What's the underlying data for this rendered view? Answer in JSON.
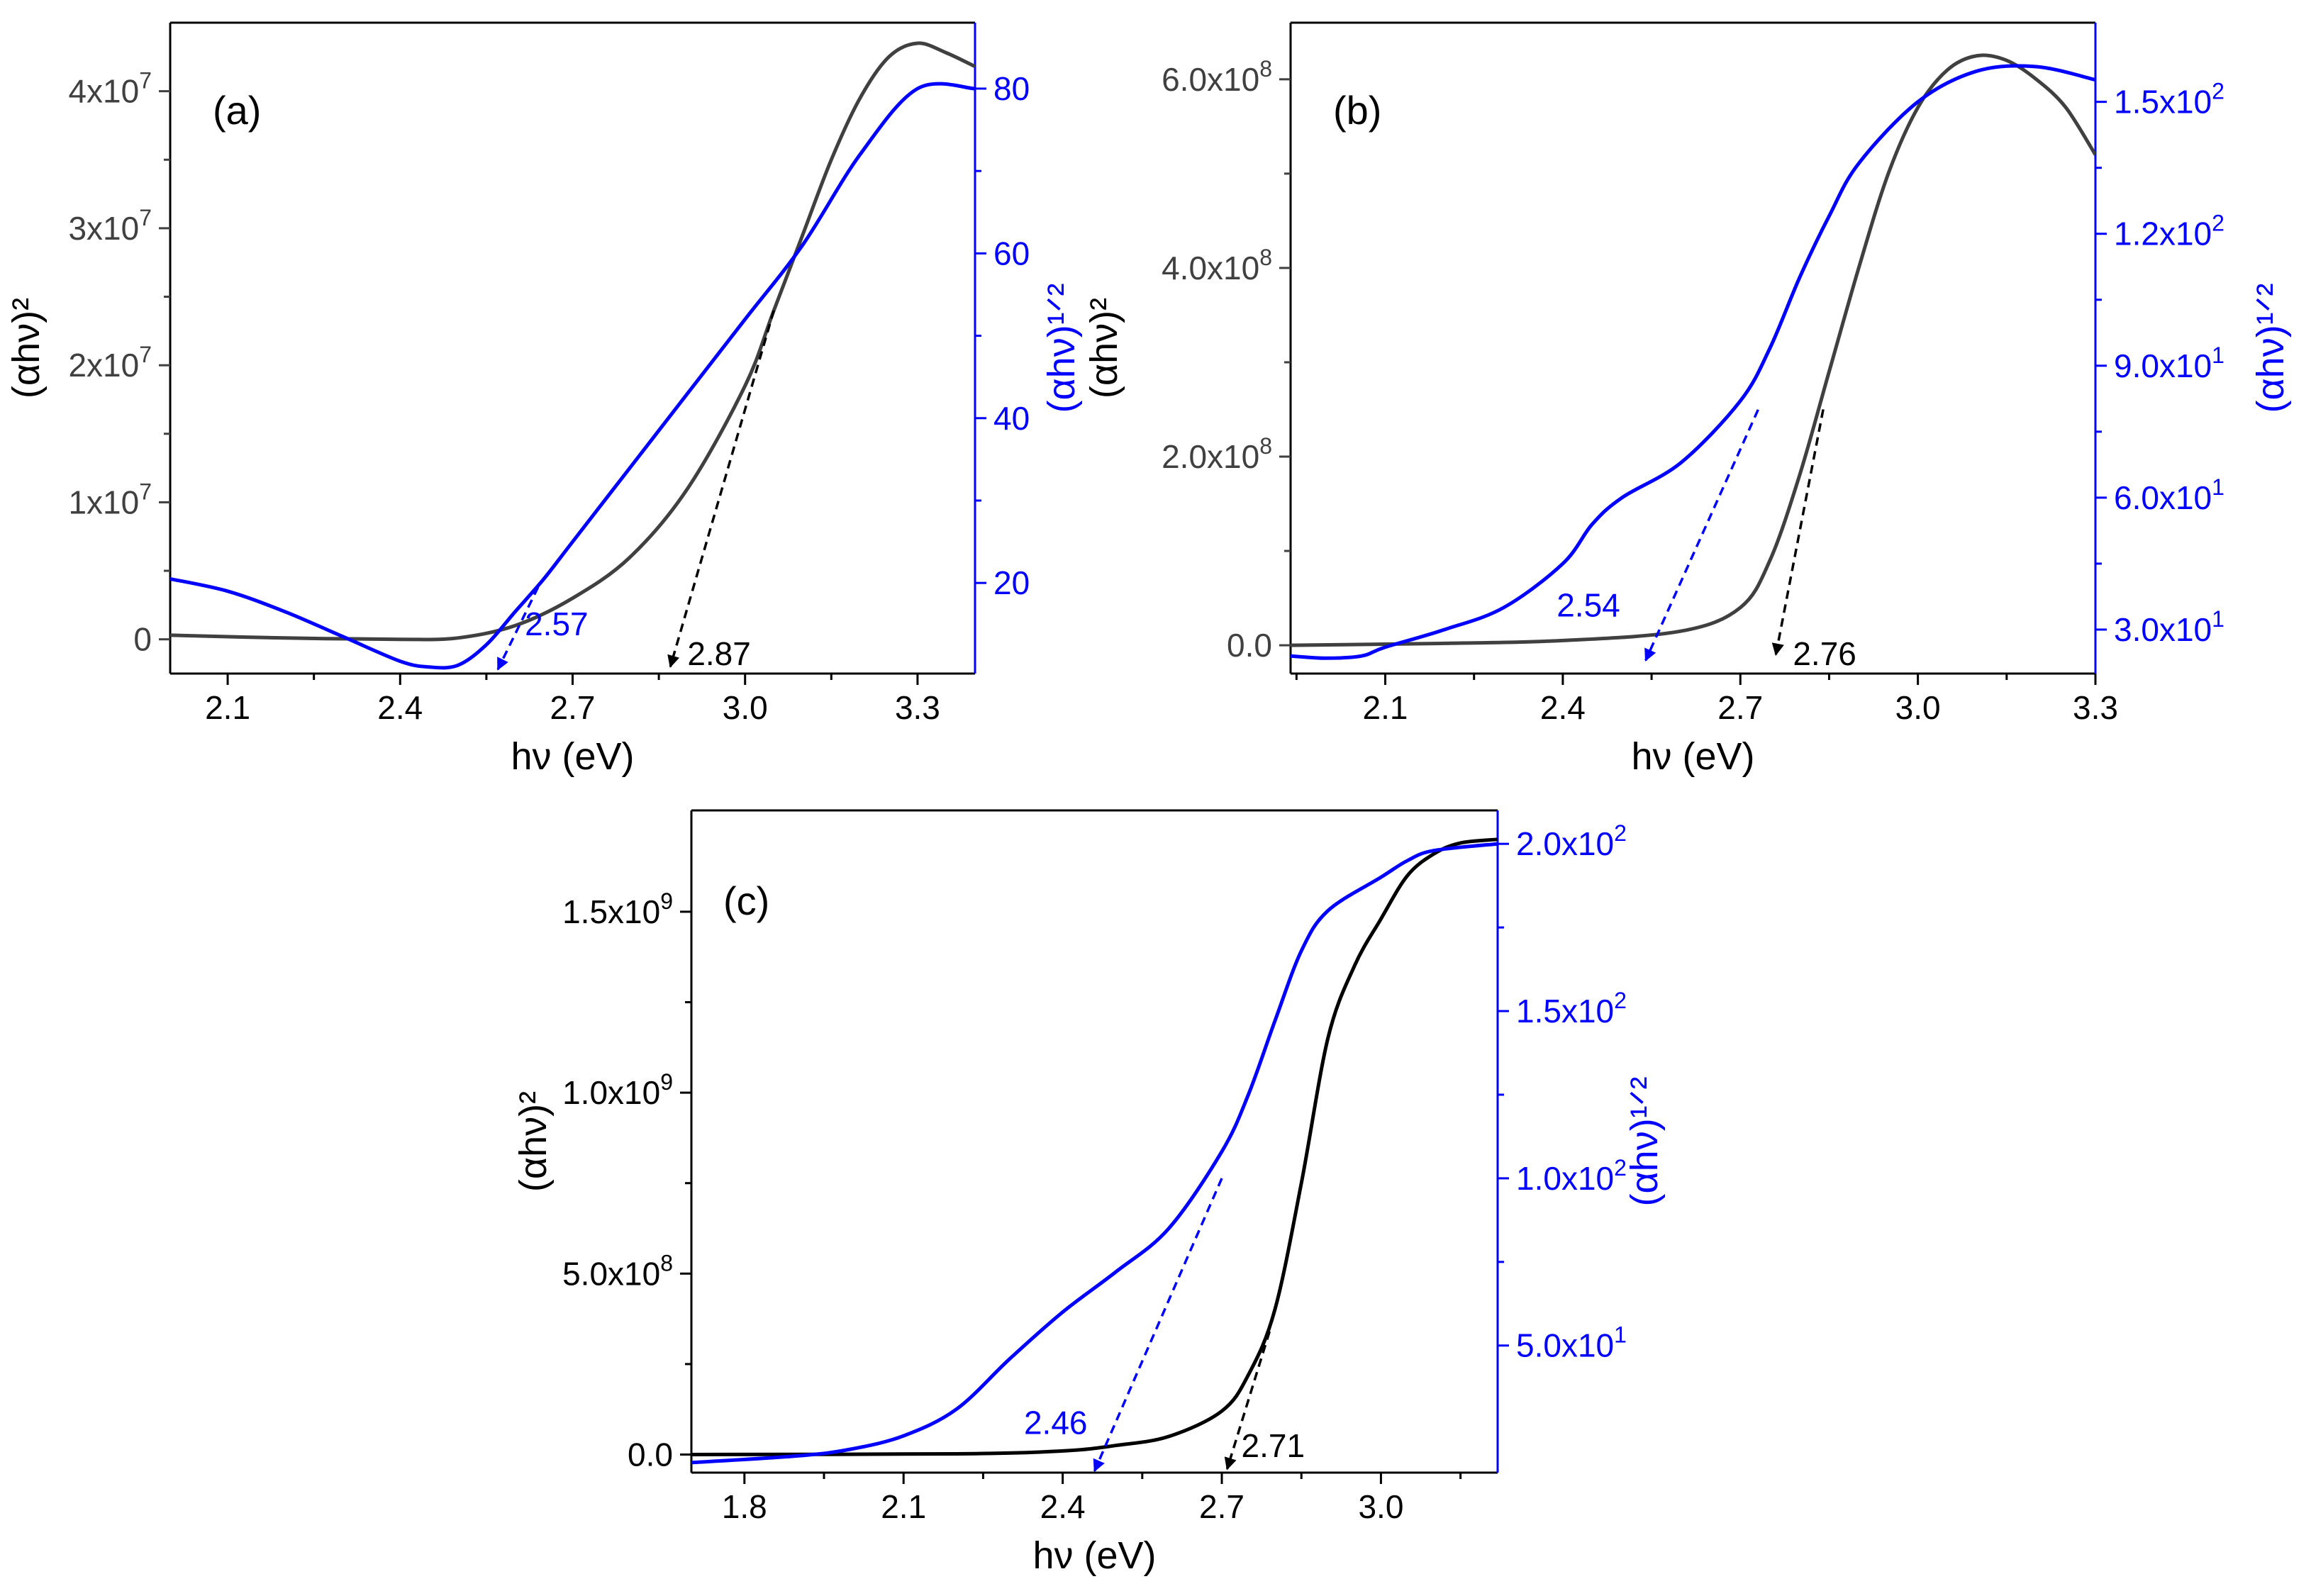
{
  "colors": {
    "left": "#404040",
    "left_c": "#000000",
    "right": "#0000ff",
    "frame": "#000000"
  },
  "chart_data": [
    {
      "panel": "(a)",
      "type": "line",
      "xlabel": "hν (eV)",
      "ylabel_left": "(αhν)²",
      "ylabel_right": "(αhν)¹ᐟ²",
      "xlim": [
        2.0,
        3.4
      ],
      "ylim_left": [
        -2500000.0,
        45000000.0
      ],
      "ylim_right": [
        9.0,
        88.0
      ],
      "xticks": [
        {
          "v": 2.1,
          "label": "2.1"
        },
        {
          "v": 2.4,
          "label": "2.4"
        },
        {
          "v": 2.7,
          "label": "2.7"
        },
        {
          "v": 3.0,
          "label": "3.0"
        },
        {
          "v": 3.3,
          "label": "3.3"
        }
      ],
      "yticks_left": [
        {
          "v": 0,
          "label": "0",
          "exp": ""
        },
        {
          "v": 10000000.0,
          "label": "1x10",
          "exp": "7"
        },
        {
          "v": 20000000.0,
          "label": "2x10",
          "exp": "7"
        },
        {
          "v": 30000000.0,
          "label": "3x10",
          "exp": "7"
        },
        {
          "v": 40000000.0,
          "label": "4x10",
          "exp": "7"
        }
      ],
      "yticks_right": [
        {
          "v": 20,
          "label": "20",
          "exp": ""
        },
        {
          "v": 40,
          "label": "40",
          "exp": ""
        },
        {
          "v": 60,
          "label": "60",
          "exp": ""
        },
        {
          "v": 80,
          "label": "80",
          "exp": ""
        }
      ],
      "series": [
        {
          "name": "(αhν)²",
          "axis": "left",
          "x": [
            2.0,
            2.2,
            2.4,
            2.5,
            2.6,
            2.7,
            2.8,
            2.9,
            3.0,
            3.05,
            3.1,
            3.15,
            3.2,
            3.25,
            3.3,
            3.35,
            3.4
          ],
          "y": [
            300000.0,
            100000.0,
            0.0,
            100000.0,
            1000000.0,
            3000000.0,
            6000000.0,
            11000000.0,
            18500000.0,
            24000000.0,
            29500000.0,
            35000000.0,
            39500000.0,
            42500000.0,
            43500000.0,
            42800000.0,
            41800000.0
          ]
        },
        {
          "name": "(αhν)¹ᐟ²",
          "axis": "right",
          "x": [
            2.0,
            2.1,
            2.2,
            2.3,
            2.4,
            2.45,
            2.5,
            2.55,
            2.6,
            2.65,
            2.7,
            2.8,
            2.9,
            3.0,
            3.1,
            3.2,
            3.3,
            3.4
          ],
          "y": [
            20.5,
            19.0,
            16.5,
            13.5,
            10.5,
            9.8,
            10.0,
            12.5,
            16.5,
            20.5,
            25.0,
            34.0,
            43.0,
            52.0,
            61.0,
            72.0,
            80.0,
            80.0
          ]
        }
      ],
      "fits": [
        {
          "name": "(αhν)¹ᐟ² tangent",
          "axis": "right",
          "x": [
            2.57,
            2.64
          ],
          "y": [
            9.5,
            19.5
          ],
          "label": "2.57"
        },
        {
          "name": "(αhν)² tangent",
          "axis": "left",
          "x": [
            2.87,
            3.05
          ],
          "y": [
            -2000000.0,
            24000000.0
          ],
          "label": "2.87"
        }
      ]
    },
    {
      "panel": "(b)",
      "type": "line",
      "xlabel": "hν (eV)",
      "ylabel_left": "(αhν)²",
      "ylabel_right": "(αhν)¹ᐟ²",
      "xlim": [
        1.94,
        3.3
      ],
      "ylim_left": [
        -30000000.0,
        660000000.0
      ],
      "ylim_right": [
        20.0,
        168.0
      ],
      "xticks": [
        {
          "v": 2.1,
          "label": "2.1"
        },
        {
          "v": 2.4,
          "label": "2.4"
        },
        {
          "v": 2.7,
          "label": "2.7"
        },
        {
          "v": 3.0,
          "label": "3.0"
        },
        {
          "v": 3.3,
          "label": "3.3"
        }
      ],
      "yticks_left": [
        {
          "v": 0,
          "label": "0.0",
          "exp": ""
        },
        {
          "v": 200000000.0,
          "label": "2.0x10",
          "exp": "8"
        },
        {
          "v": 400000000.0,
          "label": "4.0x10",
          "exp": "8"
        },
        {
          "v": 600000000.0,
          "label": "6.0x10",
          "exp": "8"
        }
      ],
      "yticks_right": [
        {
          "v": 30,
          "label": "3.0x10",
          "exp": "1"
        },
        {
          "v": 60,
          "label": "6.0x10",
          "exp": "1"
        },
        {
          "v": 90,
          "label": "9.0x10",
          "exp": "1"
        },
        {
          "v": 120,
          "label": "1.2x10",
          "exp": "2"
        },
        {
          "v": 150,
          "label": "1.5x10",
          "exp": "2"
        }
      ],
      "series": [
        {
          "name": "(αhν)²",
          "axis": "left",
          "x": [
            1.94,
            2.2,
            2.4,
            2.6,
            2.7,
            2.75,
            2.8,
            2.85,
            2.9,
            2.95,
            3.0,
            3.05,
            3.1,
            3.15,
            3.2,
            3.25,
            3.3
          ],
          "y": [
            0.0,
            2000000.0,
            5000000.0,
            15000000.0,
            40000000.0,
            90000000.0,
            180000000.0,
            290000000.0,
            400000000.0,
            500000000.0,
            570000000.0,
            610000000.0,
            625000000.0,
            620000000.0,
            600000000.0,
            570000000.0,
            520000000.0
          ]
        },
        {
          "name": "(αhν)¹ᐟ²",
          "axis": "right",
          "x": [
            1.94,
            2.0,
            2.06,
            2.1,
            2.2,
            2.3,
            2.4,
            2.45,
            2.5,
            2.6,
            2.7,
            2.75,
            2.8,
            2.85,
            2.9,
            3.0,
            3.1,
            3.2,
            3.3
          ],
          "y": [
            24.0,
            23.5,
            24.0,
            26.0,
            30.0,
            35.0,
            45.0,
            54.0,
            60.0,
            68.0,
            82.0,
            94.0,
            110.0,
            124.0,
            136.0,
            150.0,
            157.0,
            158.0,
            155.0
          ]
        }
      ],
      "fits": [
        {
          "name": "(αhν)¹ᐟ² tangent",
          "axis": "right",
          "x": [
            2.54,
            2.73
          ],
          "y": [
            23.0,
            80.0
          ],
          "label": "2.54"
        },
        {
          "name": "(αhν)² tangent",
          "axis": "left",
          "x": [
            2.76,
            2.84
          ],
          "y": [
            -10000000.0,
            250000000.0
          ],
          "label": "2.76"
        }
      ]
    },
    {
      "panel": "(c)",
      "type": "line",
      "xlabel": "hν (eV)",
      "ylabel_left": "(αhν)²",
      "ylabel_right": "(αhν)¹ᐟ²",
      "xlim": [
        1.7,
        3.22
      ],
      "ylim_left": [
        -50000000.0,
        1780000000.0
      ],
      "ylim_right": [
        12.0,
        210.0
      ],
      "xticks": [
        {
          "v": 1.8,
          "label": "1.8"
        },
        {
          "v": 2.1,
          "label": "2.1"
        },
        {
          "v": 2.4,
          "label": "2.4"
        },
        {
          "v": 2.7,
          "label": "2.7"
        },
        {
          "v": 3.0,
          "label": "3.0"
        }
      ],
      "yticks_left": [
        {
          "v": 0,
          "label": "0.0",
          "exp": ""
        },
        {
          "v": 500000000.0,
          "label": "5.0x10",
          "exp": "8"
        },
        {
          "v": 1000000000.0,
          "label": "1.0x10",
          "exp": "9"
        },
        {
          "v": 1500000000.0,
          "label": "1.5x10",
          "exp": "9"
        }
      ],
      "yticks_right": [
        {
          "v": 50,
          "label": "5.0x10",
          "exp": "1"
        },
        {
          "v": 100,
          "label": "1.0x10",
          "exp": "2"
        },
        {
          "v": 150,
          "label": "1.5x10",
          "exp": "2"
        },
        {
          "v": 200,
          "label": "2.0x10",
          "exp": "2"
        }
      ],
      "series": [
        {
          "name": "(αhν)²",
          "axis": "left",
          "x": [
            1.7,
            2.2,
            2.4,
            2.5,
            2.6,
            2.7,
            2.75,
            2.8,
            2.85,
            2.9,
            2.95,
            3.0,
            3.05,
            3.1,
            3.15,
            3.22
          ],
          "y": [
            0.0,
            2000000.0,
            10000000.0,
            25000000.0,
            50000000.0,
            120000000.0,
            220000000.0,
            400000000.0,
            750000000.0,
            1150000000.0,
            1350000000.0,
            1480000000.0,
            1600000000.0,
            1660000000.0,
            1690000000.0,
            1700000000.0
          ]
        },
        {
          "name": "(αhν)¹ᐟ²",
          "axis": "right",
          "x": [
            1.7,
            1.9,
            2.0,
            2.1,
            2.2,
            2.3,
            2.4,
            2.5,
            2.6,
            2.7,
            2.75,
            2.8,
            2.85,
            2.9,
            3.0,
            3.05,
            3.1,
            3.22
          ],
          "y": [
            15.0,
            17.0,
            19.0,
            23.0,
            31.0,
            46.0,
            60.0,
            72.0,
            85.0,
            108.0,
            125.0,
            147.0,
            168.0,
            180.0,
            190.0,
            195.0,
            198.0,
            200.0
          ]
        }
      ],
      "fits": [
        {
          "name": "(αhν)¹ᐟ² tangent",
          "axis": "right",
          "x": [
            2.46,
            2.7
          ],
          "y": [
            12.5,
            100.0
          ],
          "label": "2.46"
        },
        {
          "name": "(αhν)² tangent",
          "axis": "left",
          "x": [
            2.71,
            2.79
          ],
          "y": [
            -40000000.0,
            340000000.0
          ],
          "label": "2.71"
        }
      ]
    }
  ]
}
